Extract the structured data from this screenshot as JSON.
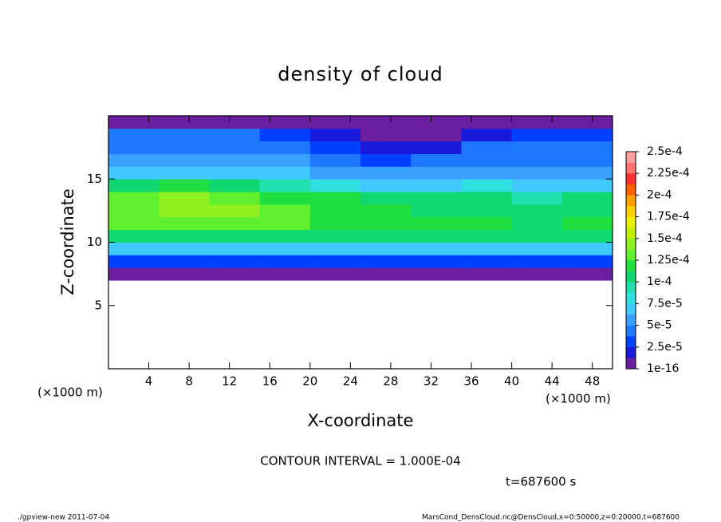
{
  "chart_data": {
    "type": "heatmap",
    "title": "density of cloud",
    "xlabel": "X-coordinate",
    "ylabel": "Z-coordinate",
    "xunit": "(×1000 m)",
    "yunit": "(×1000 m)",
    "annotation": "CONTOUR INTERVAL = 1.000E-04",
    "time": "t=687600 s",
    "footer_left": "./gpview-new  2011-07-04",
    "footer_right": "MarsCond_DensCloud.nc@DensCloud,x=0:50000,z=0:20000,t=687600",
    "xlim": [
      0,
      50
    ],
    "xticks": [
      4,
      8,
      12,
      16,
      20,
      24,
      28,
      32,
      36,
      40,
      44,
      48
    ],
    "ylim": [
      0,
      20
    ],
    "yticks": [
      5,
      10,
      15
    ],
    "x": [
      2.5,
      7.5,
      12.5,
      17.5,
      22.5,
      27.5,
      32.5,
      37.5,
      42.5,
      47.5
    ],
    "z": [
      0.5,
      1.5,
      2.5,
      3.5,
      4.5,
      5.5,
      6.5,
      7.5,
      8.5,
      9.5,
      10.5,
      11.5,
      12.5,
      13.5,
      14.5,
      15.5,
      16.5,
      17.5,
      18.5,
      19.5
    ],
    "z_values": [
      [
        null,
        null,
        null,
        null,
        null,
        null,
        null,
        null,
        null,
        null
      ],
      [
        null,
        null,
        null,
        null,
        null,
        null,
        null,
        null,
        null,
        null
      ],
      [
        null,
        null,
        null,
        null,
        null,
        null,
        null,
        null,
        null,
        null
      ],
      [
        null,
        null,
        null,
        null,
        null,
        null,
        null,
        null,
        null,
        null
      ],
      [
        null,
        null,
        null,
        null,
        null,
        null,
        null,
        null,
        null,
        null
      ],
      [
        null,
        null,
        null,
        null,
        null,
        null,
        null,
        null,
        null,
        null
      ],
      [
        null,
        null,
        null,
        null,
        null,
        null,
        null,
        null,
        null,
        null
      ],
      [
        5e-06,
        5e-06,
        5e-06,
        5e-06,
        5e-06,
        5e-06,
        5e-06,
        5e-06,
        5e-06,
        5e-06
      ],
      [
        3.5e-05,
        3.5e-05,
        3.5e-05,
        3.5e-05,
        3.5e-05,
        3.5e-05,
        3.5e-05,
        3.5e-05,
        3.5e-05,
        3.5e-05
      ],
      [
        7e-05,
        7e-05,
        7e-05,
        7e-05,
        7e-05,
        7e-05,
        7e-05,
        7e-05,
        7e-05,
        7e-05
      ],
      [
        0.000105,
        0.000105,
        0.000105,
        0.000105,
        0.000105,
        0.000105,
        0.000105,
        0.000105,
        0.000105,
        0.000105
      ],
      [
        0.00013,
        0.000135,
        0.000135,
        0.00013,
        0.000125,
        0.00012,
        0.000115,
        0.000115,
        0.00011,
        0.000115
      ],
      [
        0.000135,
        0.00014,
        0.00014,
        0.00013,
        0.00012,
        0.000115,
        0.00011,
        0.00011,
        0.000105,
        0.00011
      ],
      [
        0.00013,
        0.00014,
        0.000135,
        0.000125,
        0.000115,
        0.00011,
        0.000105,
        0.00011,
        0.0001,
        0.000105
      ],
      [
        0.000105,
        0.000115,
        0.00011,
        9e-05,
        8e-05,
        7e-05,
        7e-05,
        8e-05,
        7.5e-05,
        7e-05
      ],
      [
        7e-05,
        7.5e-05,
        7.5e-05,
        6.5e-05,
        6e-05,
        5.5e-05,
        5.5e-05,
        6e-05,
        6e-05,
        6e-05
      ],
      [
        6e-05,
        6e-05,
        6e-05,
        5.5e-05,
        4.5e-05,
        3.5e-05,
        4e-05,
        5e-05,
        5e-05,
        5e-05
      ],
      [
        5e-05,
        5e-05,
        5e-05,
        4.5e-05,
        3e-05,
        1.5e-05,
        2e-05,
        4e-05,
        4e-05,
        4e-05
      ],
      [
        4e-05,
        4e-05,
        4e-05,
        3.5e-05,
        1.5e-05,
        8e-06,
        1e-05,
        2.5e-05,
        3e-05,
        3e-05
      ],
      [
        1e-05,
        1e-05,
        1e-05,
        1e-05,
        5e-06,
        5e-06,
        5e-06,
        1e-05,
        1e-05,
        1e-05
      ]
    ],
    "clim": [
      1e-16,
      0.00025
    ],
    "cticks": [
      {
        "value": 1e-16,
        "label": "1e-16"
      },
      {
        "value": 2.5e-05,
        "label": "2.5e-5"
      },
      {
        "value": 5e-05,
        "label": "5e-5"
      },
      {
        "value": 7.5e-05,
        "label": "7.5e-5"
      },
      {
        "value": 0.0001,
        "label": "1e-4"
      },
      {
        "value": 0.000125,
        "label": "1.25e-4"
      },
      {
        "value": 0.00015,
        "label": "1.5e-4"
      },
      {
        "value": 0.000175,
        "label": "1.75e-4"
      },
      {
        "value": 0.0002,
        "label": "2e-4"
      },
      {
        "value": 0.000225,
        "label": "2.25e-4"
      },
      {
        "value": 0.00025,
        "label": "2.5e-4"
      }
    ],
    "colors": [
      "#6b1fa0",
      "#1a1adc",
      "#0040ff",
      "#1e78ff",
      "#3aa0ff",
      "#40c8ff",
      "#30e0e0",
      "#20e0b0",
      "#10d870",
      "#20e040",
      "#60f030",
      "#90f020",
      "#c0f000",
      "#e8f000",
      "#ffd000",
      "#ffa000",
      "#ff6000",
      "#ff3030",
      "#ff7070",
      "#ffa0a0"
    ]
  }
}
